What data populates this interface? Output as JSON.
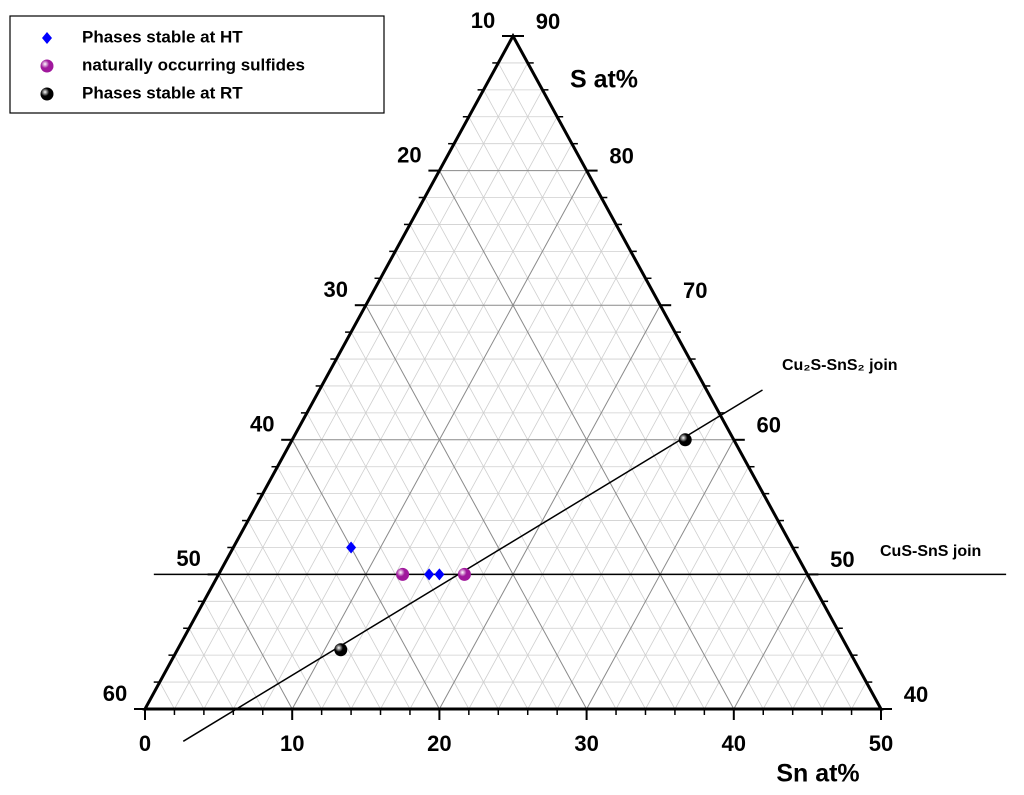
{
  "chart_data": {
    "type": "ternary",
    "xlabel": "Sn at%",
    "ylabel": "S at%",
    "xlim": [
      0,
      50
    ],
    "ylim": [
      40,
      90
    ],
    "zlim": [
      10,
      60
    ],
    "xticks": [
      0,
      10,
      20,
      30,
      40,
      50
    ],
    "yticks": [
      40,
      50,
      60,
      70,
      80,
      90
    ],
    "zticks": [
      10,
      20,
      30,
      40,
      50,
      60
    ],
    "grid": true,
    "legend": "upper left",
    "series": [
      {
        "name": "Phases stable at HT",
        "color": "#0000ff",
        "marker": "diamond",
        "x": [
          8,
          14.3,
          15
        ],
        "values": [
          52,
          50,
          50
        ]
      },
      {
        "name": "naturally occurring sulfides",
        "color": "#a0189c",
        "marker": "sphere",
        "x": [
          12.5,
          16.7
        ],
        "values": [
          50,
          50
        ]
      },
      {
        "name": "Phases stable at RT",
        "color": "#000000",
        "marker": "sphere",
        "x": [
          26.7,
          11.1
        ],
        "values": [
          60,
          44.4
        ]
      }
    ],
    "joins": [
      {
        "label": "Cu₂S-SnS₂ join",
        "x": [
          3.8,
          30.1
        ],
        "values": [
          37.6,
          63.7
        ]
      },
      {
        "label": "CuS-SnS join",
        "x": [
          -4.4,
          53.5
        ],
        "values": [
          50,
          50
        ]
      }
    ]
  }
}
